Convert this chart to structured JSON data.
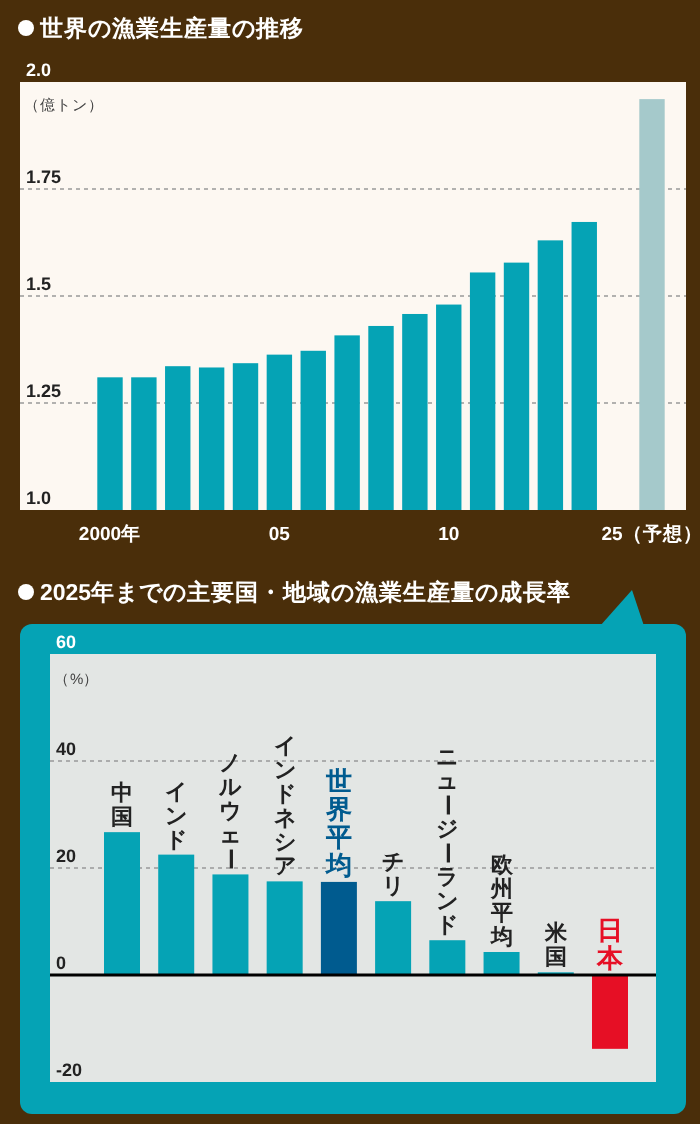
{
  "chart_data": [
    {
      "type": "bar",
      "title": "世界の漁業生産量の推移",
      "ylabel": "（億トン）",
      "categories": [
        "2000年",
        null,
        null,
        null,
        null,
        "05",
        null,
        null,
        null,
        null,
        "10",
        null,
        null,
        null,
        null,
        null,
        "25（予想）"
      ],
      "values": [
        1.31,
        1.31,
        1.336,
        1.333,
        1.343,
        1.363,
        1.372,
        1.408,
        1.43,
        1.458,
        1.48,
        1.555,
        1.578,
        1.63,
        1.673,
        null,
        1.96
      ],
      "colors": [
        "#05a3b5",
        "#05a3b5",
        "#05a3b5",
        "#05a3b5",
        "#05a3b5",
        "#05a3b5",
        "#05a3b5",
        "#05a3b5",
        "#05a3b5",
        "#05a3b5",
        "#05a3b5",
        "#05a3b5",
        "#05a3b5",
        "#05a3b5",
        "#05a3b5",
        null,
        "#a5c9cb"
      ],
      "ylim": [
        1,
        2
      ],
      "yticks": [
        {
          "value": 1,
          "label": "1.0"
        },
        1.25,
        1.5,
        1.75,
        {
          "value": 2,
          "label": "2.0"
        }
      ],
      "grid": "y"
    },
    {
      "type": "bar",
      "title": "2025年までの主要国・地域の漁業生産量の成長率",
      "ylabel": "（%）",
      "categories": [
        "中国",
        "インド",
        "ノルウェー",
        "インドネシア",
        "世界平均",
        "チリ",
        "ニュージーランド",
        "欧州平均",
        "米国",
        "日本"
      ],
      "values": [
        26.7,
        22.5,
        18.8,
        17.5,
        17.4,
        13.8,
        6.5,
        4.3,
        0.5,
        -13.8
      ],
      "colors": [
        "#05a3b5",
        "#05a3b5",
        "#05a3b5",
        "#05a3b5",
        "#005b8f",
        "#05a3b5",
        "#05a3b5",
        "#05a3b5",
        "#05a3b5",
        "#e60f25"
      ],
      "ylim": [
        -20,
        60
      ],
      "yticks": [
        -20,
        0,
        20,
        40,
        60
      ],
      "grid": "y"
    }
  ]
}
